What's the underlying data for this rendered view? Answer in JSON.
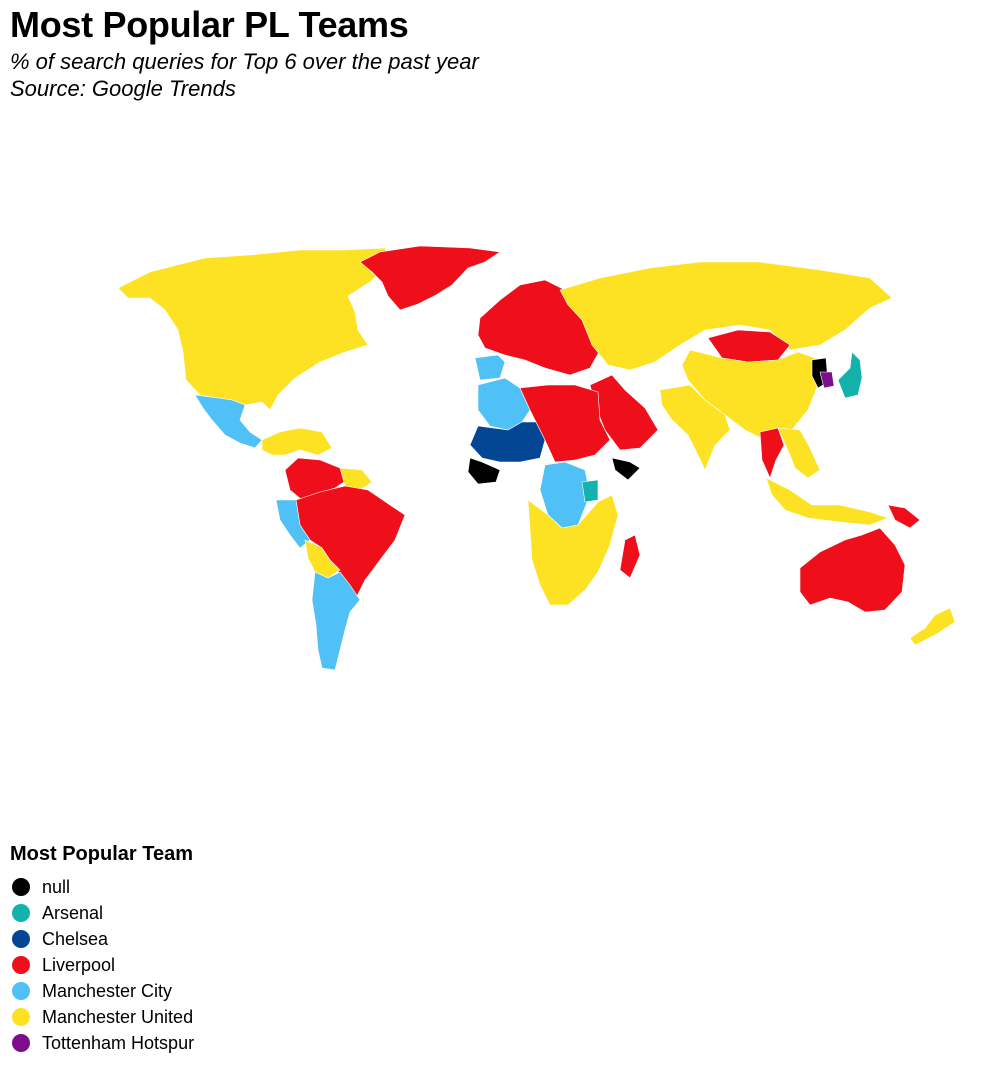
{
  "title": "Most Popular PL Teams",
  "subtitle_lines": [
    "% of search queries for Top 6 over the past year",
    "Source: Google Trends"
  ],
  "legend": {
    "title": "Most Popular Team",
    "items": [
      {
        "label": "null",
        "color": "#000000"
      },
      {
        "label": "Arsenal",
        "color": "#13B2AC"
      },
      {
        "label": "Chelsea",
        "color": "#034694"
      },
      {
        "label": "Liverpool",
        "color": "#EE0F1A"
      },
      {
        "label": "Manchester City",
        "color": "#4FC1F6"
      },
      {
        "label": "Manchester United",
        "color": "#FCE222"
      },
      {
        "label": "Tottenham Hotspur",
        "color": "#7D0F8C"
      }
    ]
  },
  "regions": [
    {
      "name": "North America",
      "team": "Manchester United"
    },
    {
      "name": "Greenland",
      "team": "Liverpool"
    },
    {
      "name": "Mexico",
      "team": "Manchester City"
    },
    {
      "name": "Central America",
      "team": "Manchester United"
    },
    {
      "name": "Colombia and Venezuela",
      "team": "Liverpool"
    },
    {
      "name": "Guianas",
      "team": "Manchester United"
    },
    {
      "name": "Brazil",
      "team": "Liverpool"
    },
    {
      "name": "Peru",
      "team": "Manchester City"
    },
    {
      "name": "Bolivia",
      "team": "Manchester United"
    },
    {
      "name": "Argentina and Chile",
      "team": "Manchester City"
    },
    {
      "name": "Western Europe",
      "team": "Liverpool"
    },
    {
      "name": "Iberia",
      "team": "Manchester City"
    },
    {
      "name": "Russia and Central Asia",
      "team": "Manchester United"
    },
    {
      "name": "Mongolia",
      "team": "Liverpool"
    },
    {
      "name": "China",
      "team": "Manchester United"
    },
    {
      "name": "India",
      "team": "Manchester United"
    },
    {
      "name": "Arabian Peninsula",
      "team": "Liverpool"
    },
    {
      "name": "Algeria",
      "team": "Manchester City"
    },
    {
      "name": "Mali and Niger",
      "team": "Chelsea"
    },
    {
      "name": "North Africa",
      "team": "Liverpool"
    },
    {
      "name": "West Africa coast",
      "team": "null"
    },
    {
      "name": "Central Africa",
      "team": "Manchester City"
    },
    {
      "name": "Kenya",
      "team": "Arsenal"
    },
    {
      "name": "Somalia",
      "team": "null"
    },
    {
      "name": "Southern Africa",
      "team": "Manchester United"
    },
    {
      "name": "Madagascar",
      "team": "Liverpool"
    },
    {
      "name": "Korea",
      "team": "null"
    },
    {
      "name": "South Korea",
      "team": "Tottenham Hotspur"
    },
    {
      "name": "Japan",
      "team": "Arsenal"
    },
    {
      "name": "Thailand",
      "team": "Liverpool"
    },
    {
      "name": "Southeast Asia",
      "team": "Manchester United"
    },
    {
      "name": "Papua New Guinea",
      "team": "Liverpool"
    },
    {
      "name": "Australia",
      "team": "Liverpool"
    },
    {
      "name": "New Zealand",
      "team": "Manchester United"
    }
  ]
}
